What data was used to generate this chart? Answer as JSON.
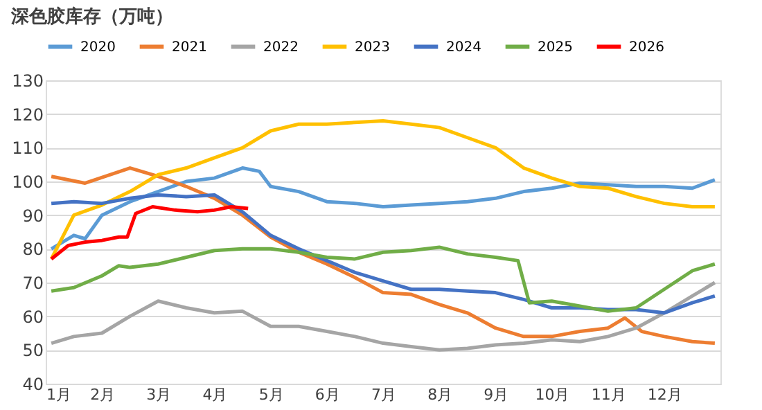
{
  "chart_data": {
    "type": "line",
    "title": "深色胶库存（万吨）",
    "xlim": [
      1,
      13
    ],
    "xticks": [
      {
        "value": 1,
        "label": "1月"
      },
      {
        "value": 2,
        "label": "2月"
      },
      {
        "value": 3,
        "label": "3月"
      },
      {
        "value": 4,
        "label": "4月"
      },
      {
        "value": 5,
        "label": "5月"
      },
      {
        "value": 6,
        "label": "6月"
      },
      {
        "value": 7,
        "label": "7月"
      },
      {
        "value": 8,
        "label": "8月"
      },
      {
        "value": 9,
        "label": "9月"
      },
      {
        "value": 10,
        "label": "10月"
      },
      {
        "value": 11,
        "label": "11月"
      },
      {
        "value": 12,
        "label": "12月"
      }
    ],
    "ylim": [
      40,
      130
    ],
    "yticks": [
      40,
      50,
      60,
      70,
      80,
      90,
      100,
      110,
      120,
      130
    ],
    "grid": "y",
    "legend": "top",
    "marker": "none",
    "line_style": "solid",
    "series": [
      {
        "name": "2020",
        "color": "#5b9bd5",
        "x": [
          1.1,
          1.5,
          1.7,
          2,
          2.5,
          3,
          3.5,
          4,
          4.5,
          4.8,
          5,
          5.5,
          6,
          6.5,
          7,
          7.5,
          8,
          8.5,
          9,
          9.5,
          10,
          10.5,
          11,
          11.5,
          12,
          12.5,
          12.9
        ],
        "values": [
          80,
          84,
          83,
          90,
          94,
          97,
          100,
          101,
          104,
          103,
          98.5,
          97,
          94,
          93.5,
          92.5,
          93,
          93.5,
          94,
          95,
          97,
          98,
          99.5,
          99,
          98.5,
          98.5,
          98,
          100.5
        ]
      },
      {
        "name": "2021",
        "color": "#ed7d31",
        "x": [
          1.1,
          1.7,
          2.5,
          3,
          3.5,
          4,
          4.5,
          5,
          5.5,
          6,
          6.5,
          7,
          7.5,
          8,
          8.5,
          9,
          9.5,
          10,
          10.5,
          11,
          11.3,
          11.6,
          12,
          12.5,
          12.9
        ],
        "values": [
          101.5,
          99.5,
          104,
          101.5,
          98.5,
          95,
          90,
          83.5,
          79,
          75.5,
          71.5,
          67,
          66.5,
          63.5,
          61,
          56.5,
          54,
          54,
          55.5,
          56.5,
          59.5,
          55.5,
          54,
          52.5,
          52
        ]
      },
      {
        "name": "2022",
        "color": "#a5a5a5",
        "x": [
          1.1,
          1.5,
          2,
          2.5,
          3,
          3.5,
          4,
          4.5,
          5,
          5.5,
          6,
          6.5,
          7,
          7.5,
          8,
          8.5,
          9,
          9.5,
          10,
          10.5,
          11,
          11.5,
          12,
          12.5,
          12.9
        ],
        "values": [
          52,
          54,
          55,
          60,
          64.5,
          62.5,
          61,
          61.5,
          57,
          57,
          55.5,
          54,
          52,
          51,
          50,
          50.5,
          51.5,
          52,
          53,
          52.5,
          54,
          56.5,
          61,
          66,
          70
        ]
      },
      {
        "name": "2023",
        "color": "#ffc000",
        "x": [
          1.1,
          1.5,
          2,
          2.5,
          3,
          3.5,
          4,
          4.5,
          5,
          5.5,
          6,
          6.5,
          7,
          7.5,
          8,
          8.5,
          9,
          9.5,
          10,
          10.5,
          11,
          11.5,
          12,
          12.5,
          12.9
        ],
        "values": [
          77,
          90,
          93,
          97,
          102,
          104,
          107,
          110,
          115,
          117,
          117,
          117.5,
          118,
          117,
          116,
          113,
          110,
          104,
          101,
          98.5,
          98,
          95.5,
          93.5,
          92.5,
          92.5
        ]
      },
      {
        "name": "2024",
        "color": "#4472c4",
        "x": [
          1.1,
          1.5,
          2,
          2.5,
          3,
          3.5,
          4,
          4.5,
          5,
          5.5,
          6,
          6.5,
          7,
          7.5,
          8,
          8.5,
          9,
          9.5,
          10,
          10.5,
          11,
          11.5,
          12,
          12.5,
          12.9
        ],
        "values": [
          93.5,
          94,
          93.5,
          95,
          96,
          95.5,
          96,
          91,
          84,
          80,
          76.5,
          73,
          70.5,
          68,
          68,
          67.5,
          67,
          65,
          62.5,
          62.5,
          62,
          62,
          61,
          64,
          66
        ]
      },
      {
        "name": "2025",
        "color": "#70ad47",
        "x": [
          1.1,
          1.5,
          2,
          2.3,
          2.5,
          3,
          3.5,
          4,
          4.5,
          5,
          5.5,
          6,
          6.5,
          7,
          7.5,
          8,
          8.5,
          9,
          9.4,
          9.6,
          10,
          10.5,
          11,
          11.5,
          12,
          12.5,
          12.9
        ],
        "values": [
          67.5,
          68.5,
          72,
          75,
          74.5,
          75.5,
          77.5,
          79.5,
          80,
          80,
          79,
          77.5,
          77,
          79,
          79.5,
          80.5,
          78.5,
          77.5,
          76.5,
          64,
          64.5,
          63,
          61.5,
          62.5,
          68,
          73.5,
          75.5
        ]
      },
      {
        "name": "2026",
        "color": "#ff0000",
        "x": [
          1.1,
          1.4,
          1.7,
          2,
          2.3,
          2.45,
          2.6,
          2.9,
          3.3,
          3.7,
          4,
          4.3,
          4.6
        ],
        "values": [
          77,
          81,
          82,
          82.5,
          83.5,
          83.5,
          90.5,
          92.5,
          91.5,
          91,
          91.5,
          92.5,
          92
        ]
      }
    ]
  }
}
